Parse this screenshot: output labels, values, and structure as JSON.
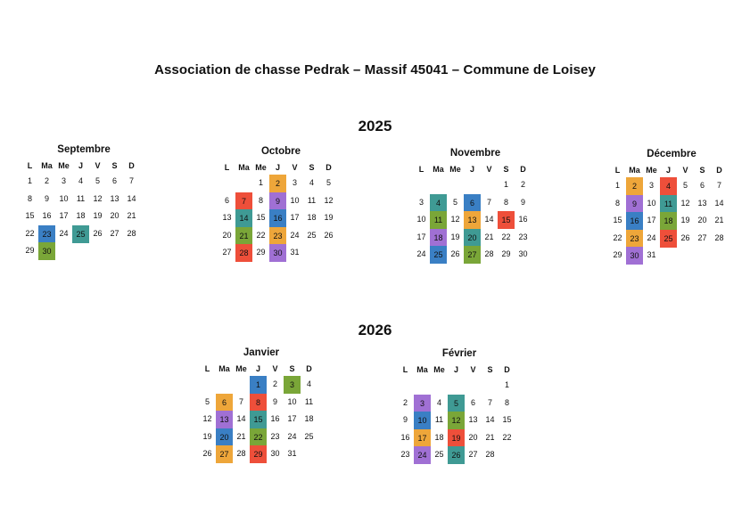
{
  "title": "Association de chasse Pedrak – Massif 45041 – Commune de Loisey",
  "weekdays": [
    "L",
    "Ma",
    "Me",
    "J",
    "V",
    "S",
    "D"
  ],
  "colors": {
    "blue": "#3a7fc4",
    "teal": "#3f9a94",
    "green": "#7aa638",
    "orange": "#eea63a",
    "purple": "#a070d4",
    "red": "#ee4f3a"
  },
  "years": [
    {
      "year": "2025",
      "months": [
        {
          "name": "Septembre",
          "days": 30,
          "start": 0,
          "highlights": {
            "23": "blue",
            "25": "teal",
            "30": "green"
          }
        },
        {
          "name": "Octobre",
          "days": 31,
          "start": 2,
          "highlights": {
            "2": "orange",
            "7": "red",
            "9": "purple",
            "14": "teal",
            "16": "blue",
            "21": "green",
            "23": "orange",
            "28": "red",
            "30": "purple"
          }
        },
        {
          "name": "Novembre",
          "days": 30,
          "start": 5,
          "highlights": {
            "4": "teal",
            "6": "blue",
            "11": "green",
            "13": "orange",
            "15": "red",
            "18": "purple",
            "20": "teal",
            "25": "blue",
            "27": "green"
          }
        },
        {
          "name": "Décembre",
          "days": 31,
          "start": 0,
          "highlights": {
            "2": "orange",
            "4": "red",
            "9": "purple",
            "11": "teal",
            "16": "blue",
            "18": "green",
            "23": "orange",
            "25": "red",
            "30": "purple"
          }
        }
      ]
    },
    {
      "year": "2026",
      "months": [
        {
          "name": "Janvier",
          "days": 31,
          "start": 3,
          "highlights": {
            "1": "blue",
            "3": "green",
            "6": "orange",
            "8": "red",
            "13": "purple",
            "15": "teal",
            "20": "blue",
            "22": "green",
            "27": "orange",
            "29": "red"
          }
        },
        {
          "name": "Février",
          "days": 28,
          "start": 6,
          "highlights": {
            "3": "purple",
            "5": "teal",
            "10": "blue",
            "12": "green",
            "17": "orange",
            "19": "red",
            "24": "purple",
            "26": "teal"
          }
        }
      ]
    }
  ]
}
